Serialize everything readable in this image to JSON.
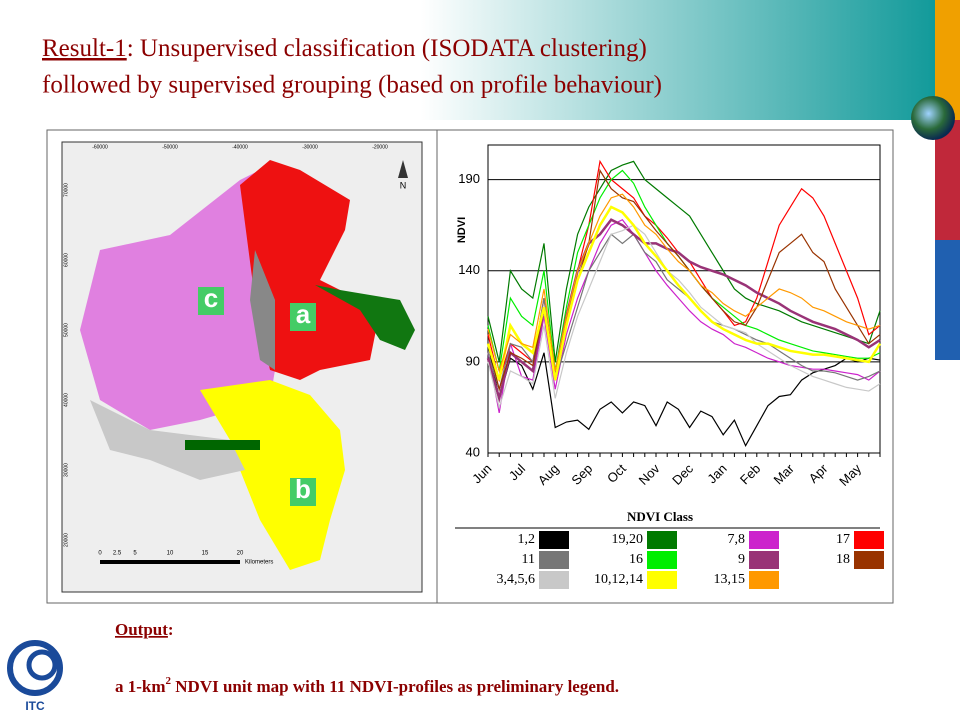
{
  "title": {
    "label": "Result-1",
    "line1": ": Unsupervised classification (ISODATA clustering)",
    "line2": "followed by supervised grouping (based on profile behaviour)"
  },
  "map": {
    "zones": [
      "c",
      "a",
      "b"
    ],
    "north": "N",
    "xlabels": [
      "-60000",
      "-50000",
      "-40000",
      "-30000",
      "-20000"
    ],
    "ylabels": [
      "70000",
      "60000",
      "50000",
      "40000",
      "30000",
      "20000"
    ],
    "scale": [
      "0",
      "2.5",
      "5",
      "10",
      "15",
      "20"
    ],
    "scale_unit": "Kilometers"
  },
  "chart_data": {
    "type": "line",
    "ylabel": "NDVI",
    "legend_title": "NDVI Class",
    "categories": [
      "Jun",
      null,
      null,
      "Jul",
      null,
      null,
      "Aug",
      null,
      null,
      "Sep",
      null,
      null,
      "Oct",
      null,
      null,
      "Nov",
      null,
      null,
      "Dec",
      null,
      null,
      "Jan",
      null,
      null,
      "Feb",
      null,
      null,
      "Mar",
      null,
      null,
      "Apr",
      null,
      null,
      "May",
      null,
      null
    ],
    "ylim": [
      40,
      209
    ],
    "yticks": [
      40,
      90,
      140,
      190
    ],
    "grid": true,
    "series": [
      {
        "name": "1,2",
        "color": "#000000",
        "values": [
          100,
          70,
          92,
          88,
          75,
          95,
          54,
          57,
          58,
          53,
          64,
          68,
          62,
          68,
          66,
          55,
          68,
          64,
          54,
          63,
          60,
          50,
          58,
          44,
          55,
          66,
          71,
          72,
          80,
          84,
          86,
          88,
          92,
          90,
          92,
          91
        ]
      },
      {
        "name": "19,20",
        "color": "#007a00",
        "values": [
          115,
          90,
          140,
          130,
          125,
          155,
          90,
          130,
          160,
          175,
          185,
          195,
          198,
          200,
          190,
          185,
          180,
          175,
          170,
          160,
          150,
          140,
          130,
          125,
          122,
          120,
          118,
          115,
          112,
          110,
          108,
          106,
          104,
          102,
          100,
          118
        ]
      },
      {
        "name": "7,8",
        "color": "#cc22cc",
        "values": [
          95,
          62,
          100,
          82,
          80,
          115,
          75,
          105,
          125,
          140,
          155,
          165,
          168,
          160,
          150,
          140,
          132,
          125,
          118,
          112,
          108,
          105,
          100,
          98,
          95,
          92,
          90,
          88,
          87,
          86,
          86,
          85,
          84,
          83,
          80,
          85
        ]
      },
      {
        "name": "17",
        "color": "#ff0000",
        "values": [
          105,
          80,
          100,
          95,
          90,
          125,
          80,
          115,
          140,
          165,
          200,
          190,
          185,
          180,
          170,
          165,
          158,
          150,
          145,
          135,
          125,
          118,
          110,
          112,
          125,
          145,
          165,
          175,
          185,
          180,
          170,
          155,
          140,
          125,
          105,
          110
        ]
      },
      {
        "name": "11",
        "color": "#777777",
        "values": [
          95,
          75,
          100,
          98,
          90,
          125,
          80,
          100,
          120,
          140,
          150,
          160,
          155,
          160,
          150,
          145,
          135,
          130,
          125,
          118,
          112,
          110,
          108,
          105,
          102,
          100,
          96,
          92,
          88,
          85,
          85,
          84,
          82,
          80,
          82,
          85
        ]
      },
      {
        "name": "16",
        "color": "#00ee00",
        "values": [
          110,
          85,
          125,
          115,
          110,
          140,
          85,
          120,
          150,
          165,
          180,
          190,
          195,
          188,
          175,
          165,
          155,
          148,
          140,
          132,
          125,
          120,
          115,
          110,
          108,
          105,
          102,
          100,
          98,
          96,
          95,
          94,
          93,
          92,
          92,
          95
        ]
      },
      {
        "name": "9",
        "color": "#993377",
        "values": [
          92,
          70,
          95,
          90,
          85,
          120,
          82,
          115,
          140,
          155,
          160,
          168,
          165,
          160,
          155,
          155,
          152,
          150,
          145,
          142,
          140,
          138,
          135,
          132,
          128,
          125,
          122,
          118,
          115,
          112,
          110,
          108,
          105,
          102,
          98,
          102
        ]
      },
      {
        "name": "18",
        "color": "#993300",
        "values": [
          100,
          75,
          95,
          92,
          88,
          120,
          80,
          110,
          135,
          155,
          195,
          185,
          180,
          178,
          170,
          162,
          155,
          148,
          140,
          132,
          125,
          118,
          112,
          110,
          120,
          135,
          150,
          155,
          160,
          150,
          145,
          130,
          120,
          110,
          100,
          105
        ]
      },
      {
        "name": "3,4,5,6",
        "color": "#c8c8c8",
        "values": [
          90,
          65,
          85,
          82,
          78,
          110,
          70,
          95,
          115,
          130,
          145,
          160,
          162,
          165,
          160,
          150,
          140,
          135,
          128,
          120,
          115,
          110,
          108,
          106,
          100,
          96,
          92,
          88,
          85,
          82,
          80,
          78,
          76,
          75,
          74,
          78
        ]
      },
      {
        "name": "10,12,14",
        "color": "#ffff00",
        "values": [
          100,
          80,
          110,
          100,
          95,
          120,
          80,
          110,
          135,
          150,
          165,
          175,
          172,
          165,
          155,
          148,
          140,
          132,
          125,
          118,
          112,
          108,
          105,
          102,
          100,
          100,
          98,
          96,
          95,
          94,
          94,
          93,
          92,
          91,
          90,
          100
        ]
      },
      {
        "name": "13,15",
        "color": "#ff9900",
        "values": [
          108,
          85,
          105,
          100,
          98,
          130,
          85,
          115,
          140,
          155,
          170,
          180,
          182,
          175,
          165,
          160,
          152,
          145,
          140,
          132,
          128,
          122,
          118,
          115,
          120,
          125,
          130,
          128,
          125,
          120,
          118,
          115,
          112,
          110,
          108,
          110
        ]
      }
    ]
  },
  "output": {
    "label": "Output",
    "sep": ":",
    "pre": "a 1-km",
    "sup": "2",
    "post": " NDVI unit map with 11 NDVI-profiles as preliminary legend."
  },
  "logo": "ITC"
}
